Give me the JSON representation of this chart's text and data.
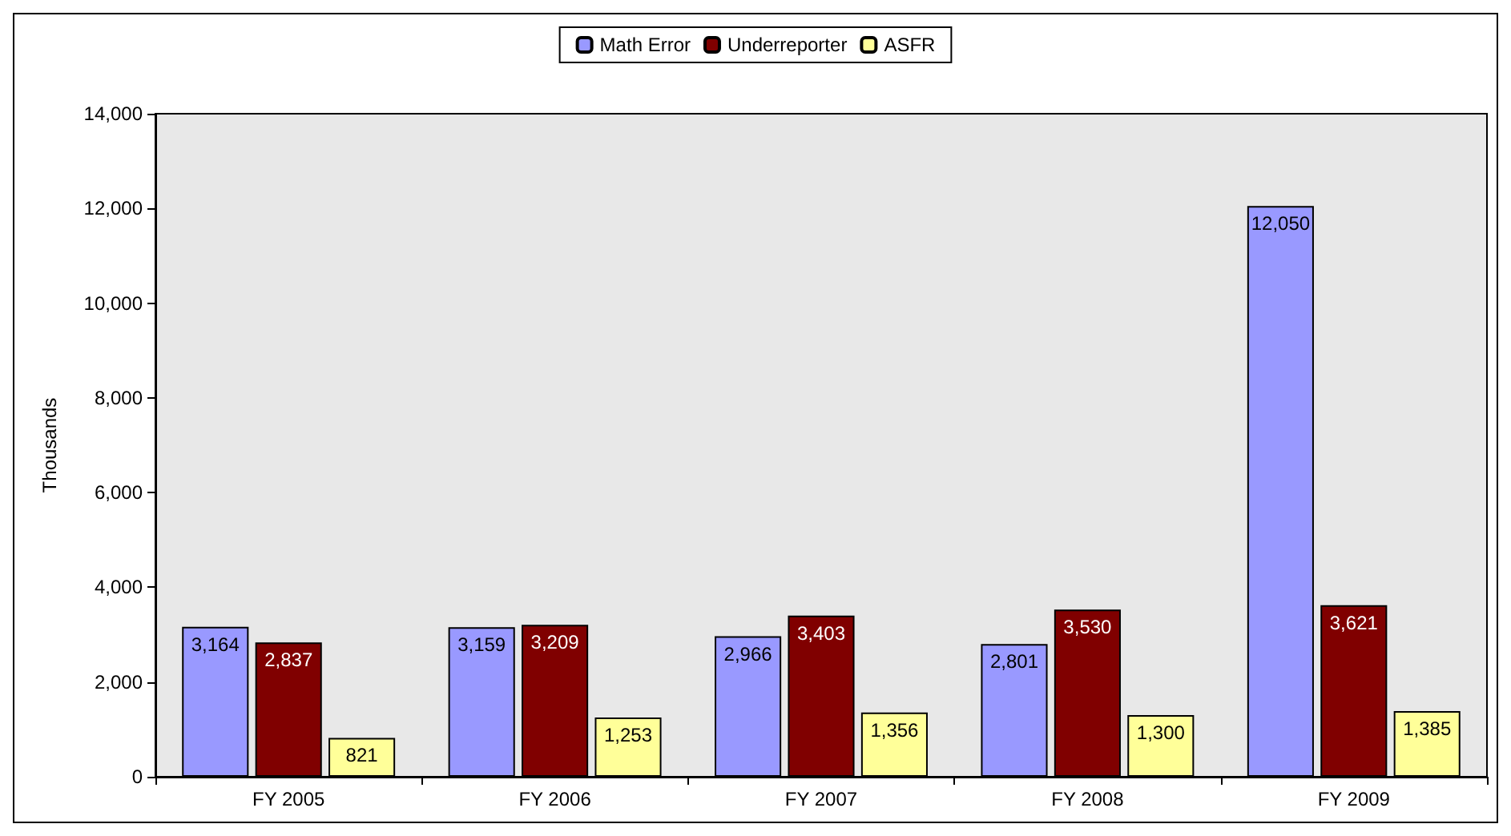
{
  "chart_data": {
    "type": "bar",
    "ylabel": "Thousands",
    "categories": [
      "FY 2005",
      "FY 2006",
      "FY 2007",
      "FY 2008",
      "FY 2009"
    ],
    "series": [
      {
        "name": "Math Error",
        "color": "#9999ff",
        "values": [
          3164,
          3159,
          2966,
          2801,
          12050
        ],
        "value_labels": [
          "3,164",
          "3,159",
          "2,966",
          "2,801",
          "12,050"
        ]
      },
      {
        "name": "Underreporter",
        "color": "#800000",
        "values": [
          2837,
          3209,
          3403,
          3530,
          3621
        ],
        "value_labels": [
          "2,837",
          "3,209",
          "3,403",
          "3,530",
          "3,621"
        ]
      },
      {
        "name": "ASFR",
        "color": "#ffff99",
        "values": [
          821,
          1253,
          1356,
          1300,
          1385
        ],
        "value_labels": [
          "821",
          "1,253",
          "1,356",
          "1,300",
          "1,385"
        ]
      }
    ],
    "ylim": [
      0,
      14000
    ],
    "yticks": [
      0,
      {
        "value": 2000,
        "label": "2,000"
      },
      {
        "value": 4000,
        "label": "4,000"
      },
      {
        "value": 6000,
        "label": "6,000"
      },
      {
        "value": 8000,
        "label": "8,000"
      },
      {
        "value": 10000,
        "label": "10,000"
      },
      {
        "value": 12000,
        "label": "12,000"
      },
      {
        "value": 14000,
        "label": "14,000"
      }
    ],
    "grid": false,
    "legend": "top"
  }
}
